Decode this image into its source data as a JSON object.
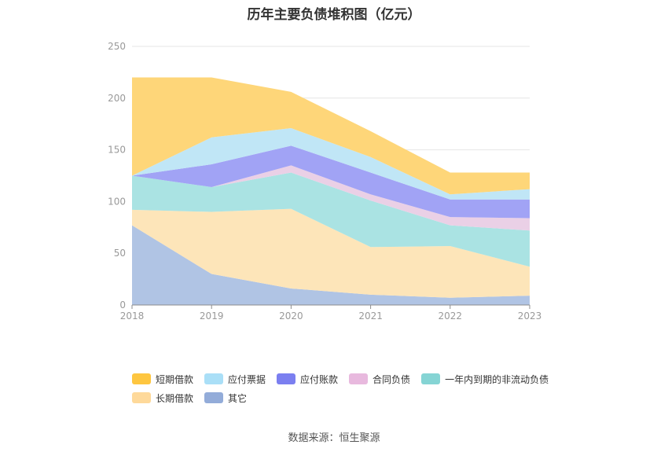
{
  "title": "历年主要负债堆积图（亿元）",
  "source": "数据来源：恒生聚源",
  "chart_data": {
    "type": "area",
    "stacked": true,
    "categories": [
      "2018",
      "2019",
      "2020",
      "2021",
      "2022",
      "2023"
    ],
    "ylim": [
      0,
      250
    ],
    "yticks": [
      0,
      50,
      100,
      150,
      200,
      250
    ],
    "grid": true,
    "legend_position": "bottom",
    "series": [
      {
        "name": "其它",
        "values": [
          77,
          30,
          16,
          10,
          7,
          9
        ],
        "color": "#b0c4e4",
        "legend_color": "#93acd9"
      },
      {
        "name": "长期借款",
        "values": [
          15,
          60,
          77,
          46,
          50,
          28
        ],
        "color": "#fde5b9",
        "legend_color": "#fed99a"
      },
      {
        "name": "一年内到期的非流动负债",
        "values": [
          33,
          24,
          35,
          45,
          20,
          35
        ],
        "color": "#aae3e3",
        "legend_color": "#85d4d4"
      },
      {
        "name": "合同负债",
        "values": [
          0,
          0,
          7,
          6,
          8,
          12
        ],
        "color": "#ead0e6",
        "legend_color": "#e8b9de"
      },
      {
        "name": "应付账款",
        "values": [
          0,
          22,
          19,
          21,
          17,
          18
        ],
        "color": "#a1a3f5",
        "legend_color": "#7b7ff0"
      },
      {
        "name": "应付票据",
        "values": [
          0,
          26,
          17,
          15,
          5,
          10
        ],
        "color": "#c0e6f6",
        "legend_color": "#aadff7"
      },
      {
        "name": "短期借款",
        "values": [
          95,
          58,
          35,
          25,
          21,
          16
        ],
        "color": "#fed679",
        "legend_color": "#fec640"
      }
    ],
    "legend_rows": [
      [
        "短期借款",
        "应付票据",
        "应付账款",
        "合同负债",
        "一年内到期的非流动负债"
      ],
      [
        "长期借款",
        "其它"
      ]
    ]
  }
}
